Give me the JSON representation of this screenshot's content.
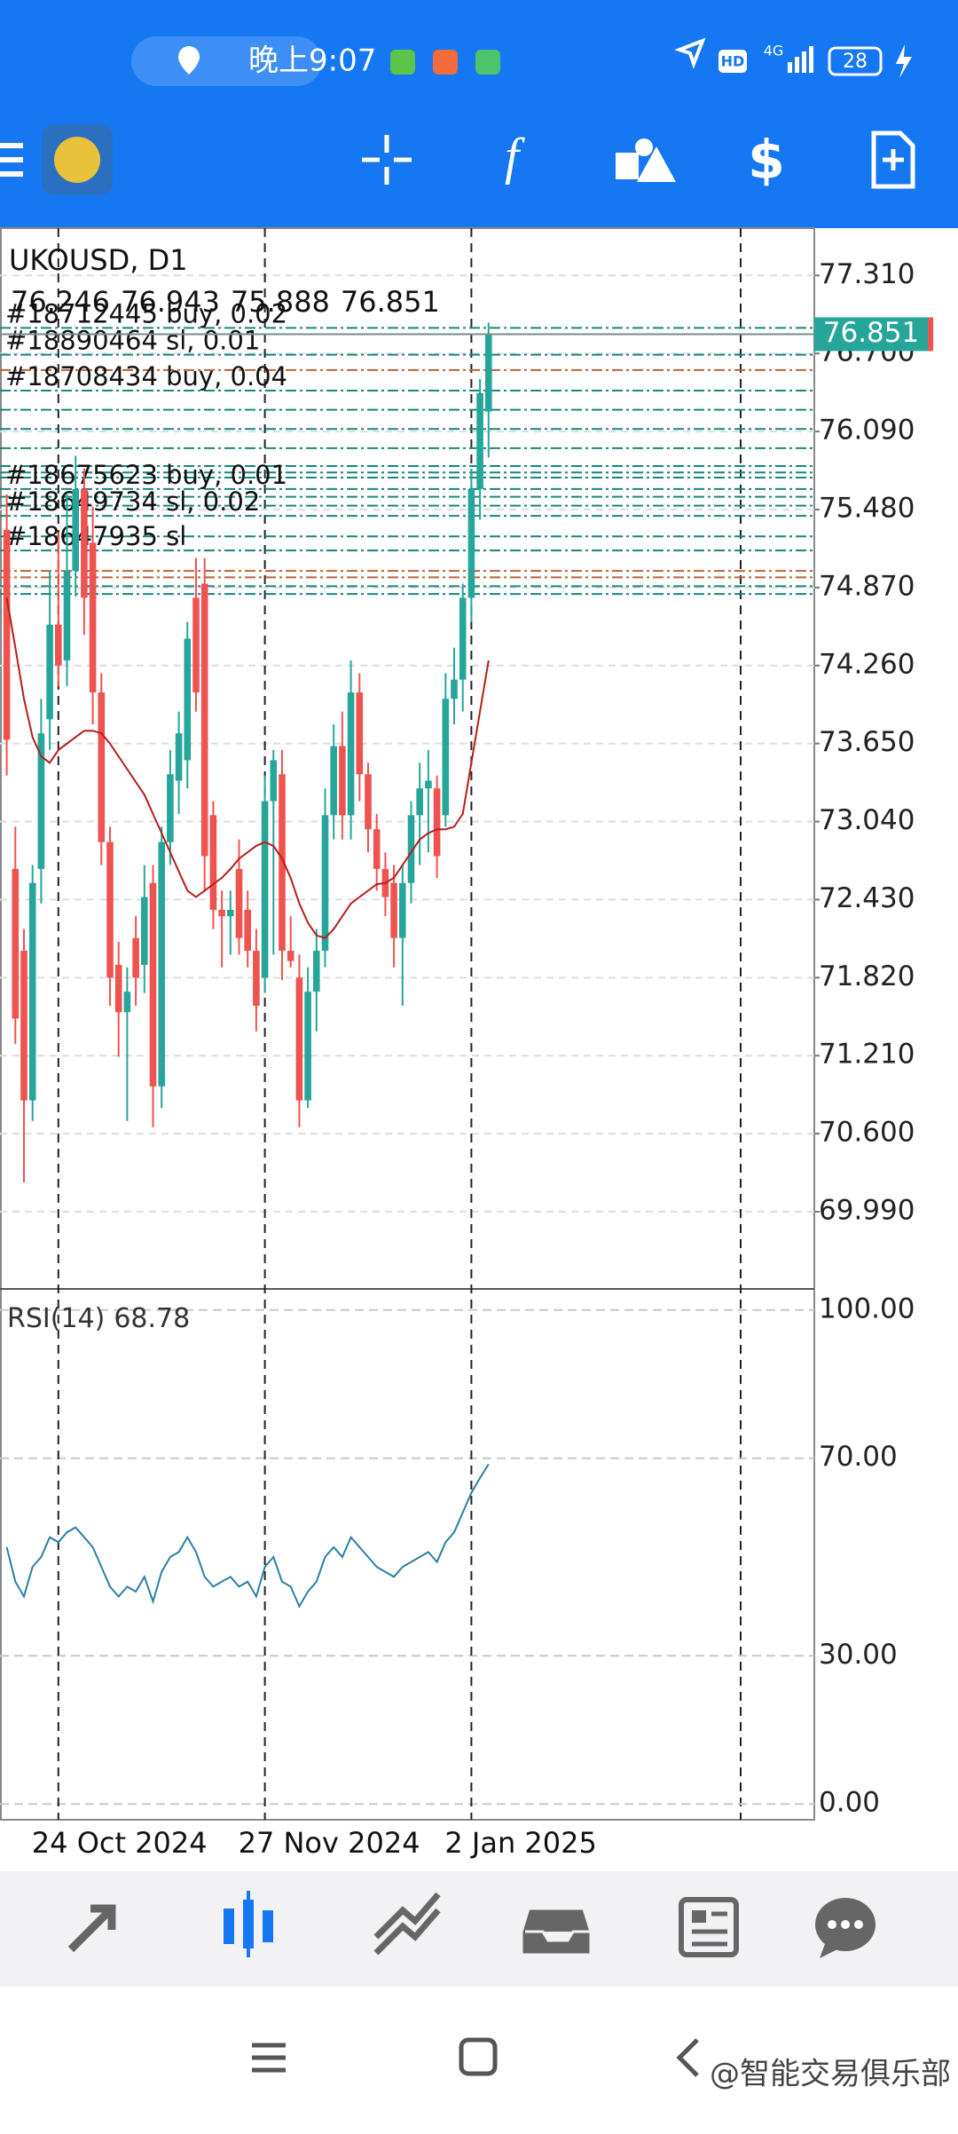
{
  "status_bar": {
    "time": "晚上9:07",
    "hd": "HD",
    "network": "4G",
    "battery": "28"
  },
  "chart_data": {
    "type": "candlestick",
    "title": "UKOUSD, D1",
    "categories": [
      null,
      null,
      null,
      null,
      null,
      null,
      "24 Oct 2024",
      null,
      null,
      null,
      null,
      null,
      null,
      null,
      null,
      null,
      null,
      null,
      null,
      null,
      null,
      null,
      null,
      null,
      null,
      null,
      null,
      null,
      null,
      null,
      "27 Nov 2024",
      null,
      null,
      null,
      null,
      null,
      null,
      null,
      null,
      null,
      null,
      null,
      null,
      null,
      null,
      null,
      null,
      null,
      null,
      null,
      null,
      null,
      null,
      null,
      "2 Jan 2025",
      null,
      null
    ],
    "open": [
      75.32,
      72.67,
      72.03,
      70.86,
      72.67,
      73.84,
      74.58,
      74.3,
      75.0,
      75.64,
      75.22,
      74.05,
      72.88,
      71.92,
      71.55,
      72.13,
      71.92,
      72.56,
      70.97,
      72.88,
      73.36,
      73.52,
      74.79,
      74.9,
      73.09,
      72.35,
      72.3,
      72.67,
      72.35,
      72.03,
      71.82,
      73.2,
      73.41,
      72.03,
      71.82,
      70.86,
      71.71,
      72.03,
      73.09,
      73.63,
      73.09,
      74.05,
      73.41,
      72.98,
      72.67,
      72.56,
      72.13,
      72.56,
      73.09,
      73.3,
      73.3,
      73.09,
      74.0,
      74.15,
      74.79,
      75.64,
      76.246
    ],
    "high": [
      75.6,
      73.0,
      72.2,
      72.7,
      74.0,
      75.0,
      75.3,
      75.6,
      75.9,
      75.8,
      75.5,
      74.2,
      73.0,
      72.1,
      71.9,
      72.3,
      72.7,
      72.7,
      73.0,
      73.6,
      73.9,
      74.6,
      75.1,
      75.1,
      73.2,
      72.5,
      72.5,
      72.9,
      72.5,
      72.2,
      73.4,
      73.6,
      73.6,
      72.3,
      72.0,
      71.9,
      72.2,
      73.3,
      73.8,
      73.9,
      74.3,
      74.2,
      73.5,
      73.1,
      72.8,
      72.7,
      72.7,
      73.2,
      73.5,
      73.6,
      73.4,
      74.2,
      74.4,
      74.9,
      75.8,
      76.5,
      76.943
    ],
    "low": [
      73.4,
      71.3,
      70.22,
      70.7,
      72.4,
      73.6,
      74.1,
      74.1,
      74.8,
      74.5,
      73.8,
      72.7,
      71.6,
      71.2,
      70.7,
      71.6,
      71.7,
      70.65,
      70.8,
      72.7,
      73.1,
      73.3,
      73.9,
      72.5,
      72.2,
      71.9,
      72.0,
      72.0,
      71.9,
      71.4,
      71.7,
      72.0,
      71.8,
      71.9,
      70.65,
      70.8,
      71.4,
      71.9,
      72.9,
      72.9,
      72.9,
      73.2,
      72.8,
      72.5,
      72.3,
      71.9,
      71.6,
      72.4,
      72.7,
      72.8,
      72.6,
      73.0,
      73.8,
      73.9,
      74.6,
      75.4,
      75.888
    ],
    "close": [
      73.68,
      71.5,
      70.86,
      72.56,
      73.73,
      74.58,
      74.26,
      75.0,
      75.64,
      74.79,
      74.05,
      72.88,
      71.82,
      71.55,
      71.71,
      71.82,
      72.45,
      70.97,
      72.88,
      73.41,
      73.73,
      74.47,
      74.05,
      72.77,
      72.35,
      72.3,
      72.35,
      72.13,
      72.03,
      71.6,
      73.2,
      73.52,
      72.03,
      71.95,
      70.86,
      71.71,
      72.03,
      73.09,
      73.63,
      73.09,
      74.05,
      73.41,
      72.98,
      72.67,
      72.45,
      72.13,
      72.56,
      73.09,
      73.3,
      73.36,
      72.77,
      74.0,
      74.15,
      74.79,
      75.64,
      76.39,
      76.851
    ],
    "up_color": "#26a69a",
    "down_color": "#ef5350",
    "ylim": [
      69.4,
      77.68
    ],
    "yticks": [
      {
        "value": 77.31,
        "label": "77.310"
      },
      {
        "value": 76.7,
        "label": "76.700"
      },
      {
        "value": 76.09,
        "label": "76.090"
      },
      {
        "value": 75.48,
        "label": "75.480"
      },
      {
        "value": 74.87,
        "label": "74.870"
      },
      {
        "value": 74.26,
        "label": "74.260"
      },
      {
        "value": 73.65,
        "label": "73.650"
      },
      {
        "value": 73.04,
        "label": "73.040"
      },
      {
        "value": 72.43,
        "label": "72.430"
      },
      {
        "value": 71.82,
        "label": "71.820"
      },
      {
        "value": 71.21,
        "label": "71.210"
      },
      {
        "value": 70.6,
        "label": "70.600"
      },
      {
        "value": 69.99,
        "label": "69.990"
      }
    ],
    "moving_average": {
      "color": "#b71c1c",
      "values": [
        74.79,
        74.4,
        74.0,
        73.7,
        73.55,
        73.5,
        73.6,
        73.65,
        73.7,
        73.75,
        73.75,
        73.73,
        73.65,
        73.55,
        73.45,
        73.35,
        73.25,
        73.1,
        72.95,
        72.8,
        72.65,
        72.5,
        72.45,
        72.5,
        72.55,
        72.6,
        72.67,
        72.75,
        72.8,
        72.85,
        72.88,
        72.85,
        72.75,
        72.6,
        72.4,
        72.25,
        72.15,
        72.13,
        72.2,
        72.3,
        72.4,
        72.45,
        72.5,
        72.55,
        72.56,
        72.6,
        72.7,
        72.8,
        72.9,
        72.95,
        72.98,
        72.98,
        73.0,
        73.1,
        73.5,
        73.9,
        74.3
      ]
    },
    "orders": [
      {
        "label": "#18712445 buy, 0.02",
        "price": 76.9,
        "color": "#17867c"
      },
      {
        "label": "#18890464 sl, 0.01",
        "price": 76.69,
        "color": "#17867c"
      },
      {
        "label": "#18708434 buy, 0.04",
        "price": 76.41,
        "color": "#17867c"
      },
      {
        "label": "#18675623 buy, 0.01",
        "price": 75.64,
        "color": "#17867c"
      },
      {
        "label": "#18649734 sl, 0.02",
        "price": 75.43,
        "color": "#17867c"
      },
      {
        "label": "#18647935 sl",
        "price": 75.16,
        "color": "#17867c"
      }
    ],
    "order_levels": [
      {
        "price": 76.57,
        "color": "#b5653c"
      },
      {
        "price": 76.26,
        "color": "#17867c"
      },
      {
        "price": 76.11,
        "color": "#17867c"
      },
      {
        "price": 75.96,
        "color": "#17867c"
      },
      {
        "price": 75.82,
        "color": "#17867c"
      },
      {
        "price": 75.77,
        "color": "#17867c"
      },
      {
        "price": 75.73,
        "color": "#17867c"
      },
      {
        "price": 75.58,
        "color": "#17867c"
      },
      {
        "price": 75.51,
        "color": "#17867c"
      },
      {
        "price": 75.27,
        "color": "#17867c"
      },
      {
        "price": 75.0,
        "color": "#b5653c"
      },
      {
        "price": 74.95,
        "color": "#b5653c"
      },
      {
        "price": 74.88,
        "color": "#17867c"
      },
      {
        "price": 74.82,
        "color": "#17867c"
      }
    ],
    "rsi": {
      "label": "RSI(14)",
      "color": "#2b7fa6",
      "values": [
        52,
        45,
        42,
        48,
        50,
        54,
        53,
        55,
        56,
        54,
        52,
        48,
        44,
        42,
        44,
        43,
        46,
        41,
        47,
        50,
        51,
        54,
        51,
        46,
        44,
        45,
        46,
        44,
        45,
        42,
        48,
        50,
        45,
        44,
        40,
        43,
        45,
        50,
        52,
        50,
        54,
        52,
        50,
        48,
        47,
        46,
        48,
        49,
        50,
        51,
        49,
        53,
        55,
        59,
        63,
        66,
        68.78
      ],
      "ylim": [
        -3.2,
        104.1
      ],
      "yticks": [
        {
          "value": 100,
          "label": "100.00"
        },
        {
          "value": 70,
          "label": "70.00"
        },
        {
          "value": 30,
          "label": "30.00"
        },
        {
          "value": 0,
          "label": "0.00"
        }
      ]
    }
  },
  "watermark": "@智能交易俱乐部"
}
